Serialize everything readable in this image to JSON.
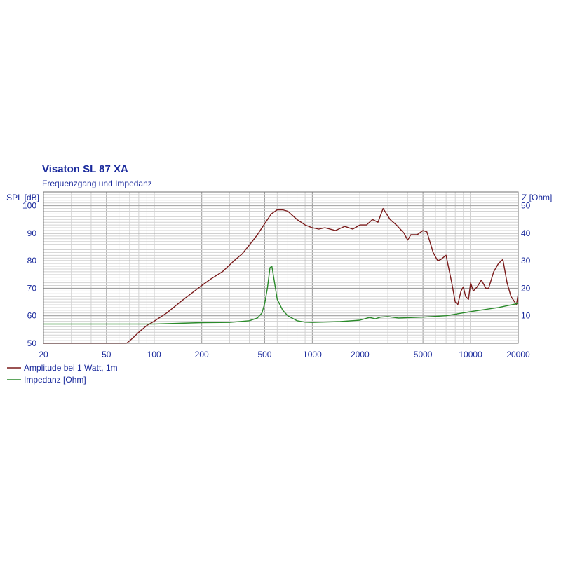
{
  "chart_data": {
    "type": "line",
    "title": "Visaton SL 87 XA",
    "subtitle": "Frequenzgang und Impedanz",
    "y_left_label": "SPL [dB]",
    "y_right_label": "Z [Ohm]",
    "x_scale": "log",
    "xlim": [
      20,
      20000
    ],
    "ylim_left": [
      50,
      105
    ],
    "ylim_right": [
      0,
      55
    ],
    "x_ticks": [
      "20",
      "50",
      "100",
      "200",
      "500",
      "1000",
      "2000",
      "5000",
      "10000",
      "20000"
    ],
    "y_left_ticks": [
      "50",
      "60",
      "70",
      "80",
      "90",
      "100"
    ],
    "y_right_ticks": [
      "10",
      "20",
      "30",
      "40",
      "50"
    ],
    "grid": true,
    "legend_position": "bottom-left",
    "series": [
      {
        "name": "Amplitude bei 1 Watt, 1m",
        "axis": "left",
        "color": "#7a1a1a",
        "points": [
          [
            20,
            50
          ],
          [
            40,
            50
          ],
          [
            67,
            50
          ],
          [
            72,
            51.5
          ],
          [
            80,
            54
          ],
          [
            90,
            56.5
          ],
          [
            100,
            58
          ],
          [
            120,
            61
          ],
          [
            150,
            65.5
          ],
          [
            200,
            71
          ],
          [
            230,
            73.5
          ],
          [
            270,
            76
          ],
          [
            320,
            80
          ],
          [
            360,
            82.5
          ],
          [
            410,
            86.5
          ],
          [
            450,
            89.5
          ],
          [
            500,
            93.5
          ],
          [
            550,
            97
          ],
          [
            600,
            98.5
          ],
          [
            650,
            98.5
          ],
          [
            700,
            98
          ],
          [
            800,
            95
          ],
          [
            900,
            93
          ],
          [
            1000,
            92
          ],
          [
            1100,
            91.5
          ],
          [
            1200,
            92
          ],
          [
            1400,
            91
          ],
          [
            1600,
            92.5
          ],
          [
            1800,
            91.5
          ],
          [
            2000,
            93
          ],
          [
            2200,
            93
          ],
          [
            2400,
            95
          ],
          [
            2600,
            94
          ],
          [
            2800,
            99
          ],
          [
            3100,
            95
          ],
          [
            3400,
            93
          ],
          [
            3800,
            90
          ],
          [
            4000,
            87.5
          ],
          [
            4200,
            89.5
          ],
          [
            4600,
            89.5
          ],
          [
            5000,
            91
          ],
          [
            5300,
            90.5
          ],
          [
            5800,
            83
          ],
          [
            6200,
            80
          ],
          [
            6500,
            80.5
          ],
          [
            7000,
            82
          ],
          [
            7600,
            72
          ],
          [
            8000,
            65
          ],
          [
            8300,
            64
          ],
          [
            8700,
            69
          ],
          [
            9000,
            70.5
          ],
          [
            9300,
            67
          ],
          [
            9700,
            66
          ],
          [
            10000,
            72
          ],
          [
            10400,
            69
          ],
          [
            11000,
            70.5
          ],
          [
            11700,
            73
          ],
          [
            12500,
            70
          ],
          [
            13000,
            70
          ],
          [
            14000,
            76
          ],
          [
            15000,
            79
          ],
          [
            16000,
            80.5
          ],
          [
            17000,
            72
          ],
          [
            18000,
            67
          ],
          [
            19000,
            65
          ],
          [
            19500,
            64
          ],
          [
            20000,
            68
          ]
        ]
      },
      {
        "name": "Impedanz [Ohm]",
        "axis": "right",
        "color": "#2a8a2a",
        "points": [
          [
            20,
            7
          ],
          [
            100,
            7
          ],
          [
            200,
            7.5
          ],
          [
            300,
            7.6
          ],
          [
            400,
            8.2
          ],
          [
            450,
            9.2
          ],
          [
            480,
            11
          ],
          [
            500,
            14.5
          ],
          [
            520,
            20
          ],
          [
            540,
            27.5
          ],
          [
            555,
            28
          ],
          [
            570,
            24
          ],
          [
            600,
            16
          ],
          [
            650,
            12
          ],
          [
            700,
            10
          ],
          [
            800,
            8.2
          ],
          [
            900,
            7.7
          ],
          [
            1000,
            7.6
          ],
          [
            1500,
            7.9
          ],
          [
            2000,
            8.4
          ],
          [
            2300,
            9.4
          ],
          [
            2500,
            8.9
          ],
          [
            2700,
            9.5
          ],
          [
            3000,
            9.7
          ],
          [
            3500,
            9.2
          ],
          [
            5000,
            9.5
          ],
          [
            7000,
            10
          ],
          [
            10000,
            11.5
          ],
          [
            15000,
            13
          ],
          [
            20000,
            14.5
          ]
        ]
      }
    ]
  }
}
